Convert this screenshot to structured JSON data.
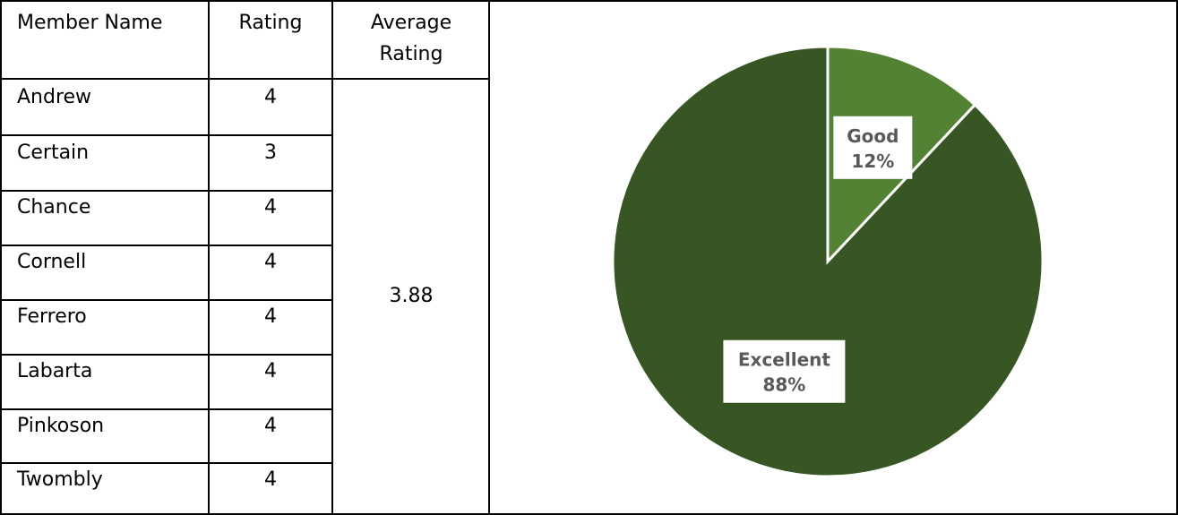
{
  "table": {
    "headers": {
      "member": "Member Name",
      "rating": "Rating",
      "avg_line1": "Average",
      "avg_line2": "Rating"
    },
    "rows": [
      {
        "name": "Andrew",
        "rating": "4"
      },
      {
        "name": "Certain",
        "rating": "3"
      },
      {
        "name": "Chance",
        "rating": "4"
      },
      {
        "name": "Cornell",
        "rating": "4"
      },
      {
        "name": "Ferrero",
        "rating": "4"
      },
      {
        "name": "Labarta",
        "rating": "4"
      },
      {
        "name": "Pinkoson",
        "rating": "4"
      },
      {
        "name": "Twombly",
        "rating": "4"
      }
    ],
    "average": "3.88"
  },
  "chart_data": {
    "type": "pie",
    "slices": [
      {
        "label": "Good",
        "value": 12,
        "value_label": "12%",
        "color": "#548235"
      },
      {
        "label": "Excellent",
        "value": 88,
        "value_label": "88%",
        "color": "#375623"
      }
    ],
    "title": ""
  }
}
